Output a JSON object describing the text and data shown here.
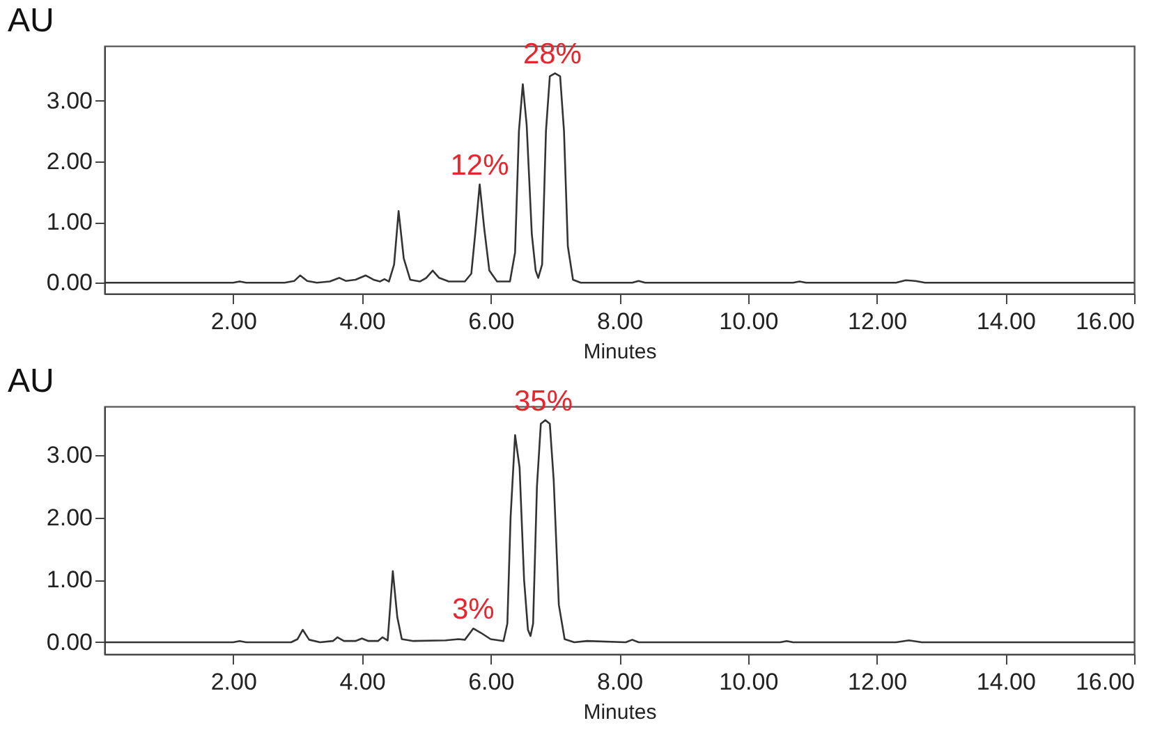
{
  "chart_data": [
    {
      "type": "line",
      "xlabel": "Minutes",
      "ylabel": "AU",
      "xlim": [
        0,
        16
      ],
      "ylim": [
        -0.18,
        3.9
      ],
      "xticks": [
        {
          "value": 2,
          "label": "2.00"
        },
        {
          "value": 4,
          "label": "4.00"
        },
        {
          "value": 6,
          "label": "6.00"
        },
        {
          "value": 8,
          "label": "8.00"
        },
        {
          "value": 10,
          "label": "10.00"
        },
        {
          "value": 12,
          "label": "12.00"
        },
        {
          "value": 14,
          "label": "14.00"
        },
        {
          "value": 16,
          "label": "16.00"
        }
      ],
      "yticks": [
        {
          "value": 0,
          "label": "0.00"
        },
        {
          "value": 1,
          "label": "1.00"
        },
        {
          "value": 2,
          "label": "2.00"
        },
        {
          "value": 3,
          "label": "3.00"
        }
      ],
      "series": [
        {
          "color": "#333333",
          "x": [
            0,
            2.0,
            2.1,
            2.2,
            2.8,
            2.95,
            3.04,
            3.15,
            3.3,
            3.5,
            3.65,
            3.75,
            3.9,
            4.06,
            4.18,
            4.28,
            4.35,
            4.42,
            4.5,
            4.57,
            4.65,
            4.75,
            4.9,
            5.0,
            5.1,
            5.2,
            5.35,
            5.6,
            5.7,
            5.76,
            5.83,
            5.9,
            5.98,
            6.1,
            6.3,
            6.38,
            6.44,
            6.5,
            6.56,
            6.64,
            6.7,
            6.74,
            6.8,
            6.86,
            6.92,
            7.0,
            7.08,
            7.14,
            7.2,
            7.28,
            7.4,
            8.2,
            8.3,
            8.4,
            10.7,
            10.8,
            10.9,
            12.3,
            12.45,
            12.6,
            12.75,
            16
          ],
          "values": [
            0,
            0,
            0.02,
            0,
            0,
            0.03,
            0.12,
            0.03,
            0,
            0.02,
            0.08,
            0.03,
            0.05,
            0.12,
            0.05,
            0.02,
            0.06,
            0.02,
            0.3,
            1.18,
            0.4,
            0.05,
            0.02,
            0.08,
            0.2,
            0.08,
            0.02,
            0.02,
            0.15,
            0.8,
            1.62,
            0.9,
            0.2,
            0.02,
            0.02,
            0.5,
            2.5,
            3.27,
            2.6,
            0.8,
            0.2,
            0.08,
            0.3,
            2.5,
            3.4,
            3.45,
            3.4,
            2.5,
            0.6,
            0.05,
            0,
            0,
            0.03,
            0,
            0,
            0.02,
            0,
            0,
            0.04,
            0.03,
            0,
            0
          ]
        }
      ],
      "annotations": [
        {
          "text": "12%",
          "x": 5.83,
          "y": 1.62
        },
        {
          "text": "28%",
          "x": 6.96,
          "y": 3.45
        }
      ]
    },
    {
      "type": "line",
      "xlabel": "Minutes",
      "ylabel": "AU",
      "xlim": [
        0,
        16
      ],
      "ylim": [
        -0.19,
        3.78
      ],
      "xticks": [
        {
          "value": 2,
          "label": "2.00"
        },
        {
          "value": 4,
          "label": "4.00"
        },
        {
          "value": 6,
          "label": "6.00"
        },
        {
          "value": 8,
          "label": "8.00"
        },
        {
          "value": 10,
          "label": "10.00"
        },
        {
          "value": 12,
          "label": "12.00"
        },
        {
          "value": 14,
          "label": "14.00"
        },
        {
          "value": 16,
          "label": "16.00"
        }
      ],
      "yticks": [
        {
          "value": 0,
          "label": "0.00"
        },
        {
          "value": 1,
          "label": "1.00"
        },
        {
          "value": 2,
          "label": "2.00"
        },
        {
          "value": 3,
          "label": "3.00"
        }
      ],
      "series": [
        {
          "color": "#333333",
          "x": [
            0,
            2.0,
            2.1,
            2.2,
            2.9,
            3.0,
            3.08,
            3.18,
            3.35,
            3.55,
            3.62,
            3.72,
            3.9,
            4.0,
            4.1,
            4.25,
            4.32,
            4.4,
            4.42,
            4.48,
            4.55,
            4.62,
            4.8,
            5.3,
            5.5,
            5.6,
            5.73,
            5.85,
            6.0,
            6.2,
            6.26,
            6.31,
            6.38,
            6.45,
            6.52,
            6.58,
            6.62,
            6.66,
            6.72,
            6.78,
            6.85,
            6.92,
            6.98,
            7.06,
            7.15,
            7.3,
            7.5,
            8.1,
            8.2,
            8.3,
            10.5,
            10.6,
            10.7,
            12.3,
            12.5,
            12.7,
            16
          ],
          "values": [
            0,
            0,
            0.02,
            0,
            0,
            0.05,
            0.2,
            0.04,
            0,
            0.02,
            0.08,
            0.02,
            0.02,
            0.06,
            0.02,
            0.02,
            0.08,
            0.03,
            0.3,
            1.14,
            0.4,
            0.05,
            0.02,
            0.03,
            0.05,
            0.04,
            0.22,
            0.15,
            0.05,
            0.02,
            0.3,
            2.0,
            3.32,
            2.8,
            1.0,
            0.2,
            0.1,
            0.3,
            2.5,
            3.5,
            3.56,
            3.5,
            2.6,
            0.6,
            0.05,
            0,
            0.02,
            0,
            0.04,
            0,
            0,
            0.02,
            0,
            0,
            0.03,
            0,
            0
          ]
        }
      ],
      "annotations": [
        {
          "text": "3%",
          "x": 5.73,
          "y": 0.22
        },
        {
          "text": "35%",
          "x": 6.82,
          "y": 3.56
        }
      ]
    }
  ]
}
